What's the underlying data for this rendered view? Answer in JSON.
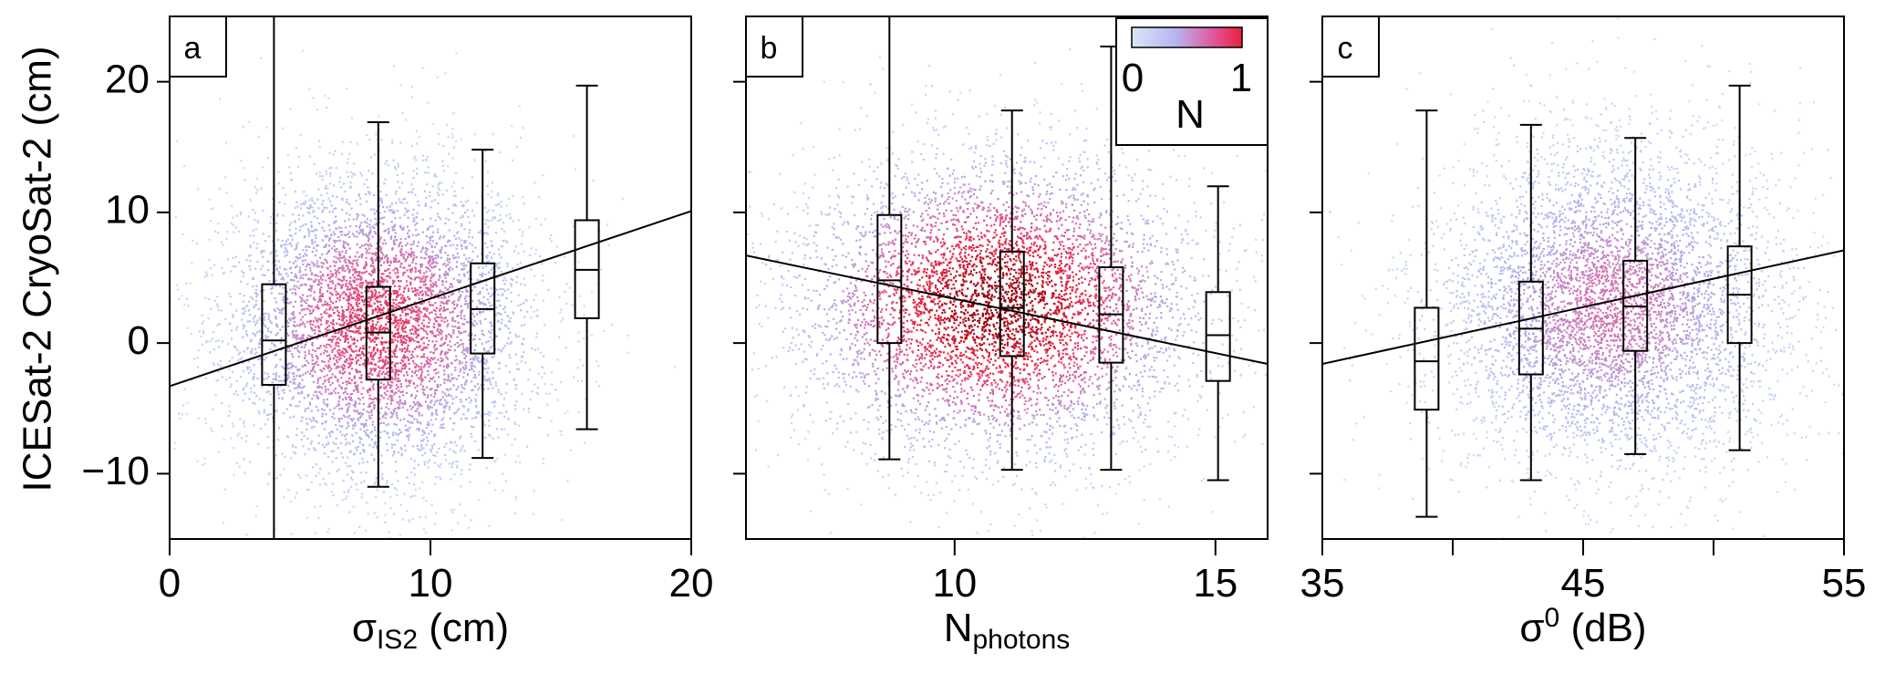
{
  "figure": {
    "y_axis_label": "ICESat-2 CryoSat-2 (cm)"
  },
  "legend": {
    "title": "N",
    "min_label": "0",
    "max_label": "1",
    "colors": [
      "#d6e8f8",
      "#b9b4ee",
      "#e0559a",
      "#e8203a"
    ]
  },
  "chart_data": [
    {
      "type": "scatter",
      "panel_label": "a",
      "xlabel": "σIS2 (cm)",
      "xlabel_main": "σ",
      "xlabel_sub": "IS2",
      "xlabel_unit": " (cm)",
      "xlim": [
        0,
        20
      ],
      "ylim": [
        -15,
        25
      ],
      "x_ticks": [
        0,
        10,
        20
      ],
      "x_minor_ticks": [],
      "y_ticks": [
        -10,
        0,
        10,
        20
      ],
      "density_center": [
        8,
        1.5
      ],
      "density_spread": [
        3.0,
        6.0
      ],
      "density_peak": 0.7,
      "regression_line": {
        "x": [
          0,
          20
        ],
        "y": [
          -3.3,
          10.1
        ]
      },
      "boxplots": [
        {
          "x": 4,
          "whisker_low": -15,
          "q1": -3.2,
          "median": 0.2,
          "q3": 4.5,
          "whisker_high": 25
        },
        {
          "x": 8,
          "whisker_low": -11,
          "q1": -2.8,
          "median": 0.8,
          "q3": 4.3,
          "whisker_high": 16.9
        },
        {
          "x": 12,
          "whisker_low": -8.8,
          "q1": -0.8,
          "median": 2.6,
          "q3": 6.1,
          "whisker_high": 14.8
        },
        {
          "x": 16,
          "whisker_low": -6.6,
          "q1": 1.9,
          "median": 5.6,
          "q3": 9.4,
          "whisker_high": 19.7
        }
      ]
    },
    {
      "type": "scatter",
      "panel_label": "b",
      "xlabel": "Nphotons",
      "xlabel_main": "N",
      "xlabel_sub": "photons",
      "xlabel_unit": "",
      "xlim": [
        6,
        16
      ],
      "ylim": [
        -15,
        25
      ],
      "x_ticks": [
        10,
        15
      ],
      "x_minor_ticks": [],
      "y_ticks": [
        -10,
        0,
        10,
        20
      ],
      "density_center": [
        10.8,
        3
      ],
      "density_spread": [
        2.0,
        6.0
      ],
      "density_peak": 1.0,
      "regression_line": {
        "x": [
          6,
          16
        ],
        "y": [
          6.7,
          -1.6
        ]
      },
      "boxplots": [
        {
          "x": 8.75,
          "whisker_low": -8.9,
          "q1": 0,
          "median": 4.8,
          "q3": 9.8,
          "whisker_high": 25
        },
        {
          "x": 11.1,
          "whisker_low": -9.7,
          "q1": -1,
          "median": 2.7,
          "q3": 7,
          "whisker_high": 17.8
        },
        {
          "x": 13,
          "whisker_low": -9.7,
          "q1": -1.5,
          "median": 2.2,
          "q3": 5.8,
          "whisker_high": 22.7
        },
        {
          "x": 15.05,
          "whisker_low": -10.5,
          "q1": -2.9,
          "median": 0.6,
          "q3": 3.9,
          "whisker_high": 12
        }
      ]
    },
    {
      "type": "scatter",
      "panel_label": "c",
      "xlabel": "σ0 (dB)",
      "xlabel_main": "σ",
      "xlabel_sup": "0",
      "xlabel_unit": " (dB)",
      "xlim": [
        35,
        55
      ],
      "ylim": [
        -15,
        25
      ],
      "x_ticks": [
        35,
        45,
        55
      ],
      "x_minor_ticks": [
        40,
        50
      ],
      "y_ticks": [
        -10,
        0,
        10,
        20
      ],
      "density_center": [
        46,
        3
      ],
      "density_spread": [
        3.5,
        6.5
      ],
      "density_peak": 0.5,
      "regression_line": {
        "x": [
          35,
          55
        ],
        "y": [
          -1.6,
          7.1
        ]
      },
      "boxplots": [
        {
          "x": 39,
          "whisker_low": -13.3,
          "q1": -5.1,
          "median": -1.4,
          "q3": 2.7,
          "whisker_high": 17.8
        },
        {
          "x": 43,
          "whisker_low": -10.5,
          "q1": -2.4,
          "median": 1.1,
          "q3": 4.7,
          "whisker_high": 16.7
        },
        {
          "x": 47,
          "whisker_low": -8.5,
          "q1": -0.6,
          "median": 2.8,
          "q3": 6.3,
          "whisker_high": 15.7
        },
        {
          "x": 51,
          "whisker_low": -8.2,
          "q1": 0,
          "median": 3.7,
          "q3": 7.4,
          "whisker_high": 19.7
        }
      ]
    }
  ]
}
